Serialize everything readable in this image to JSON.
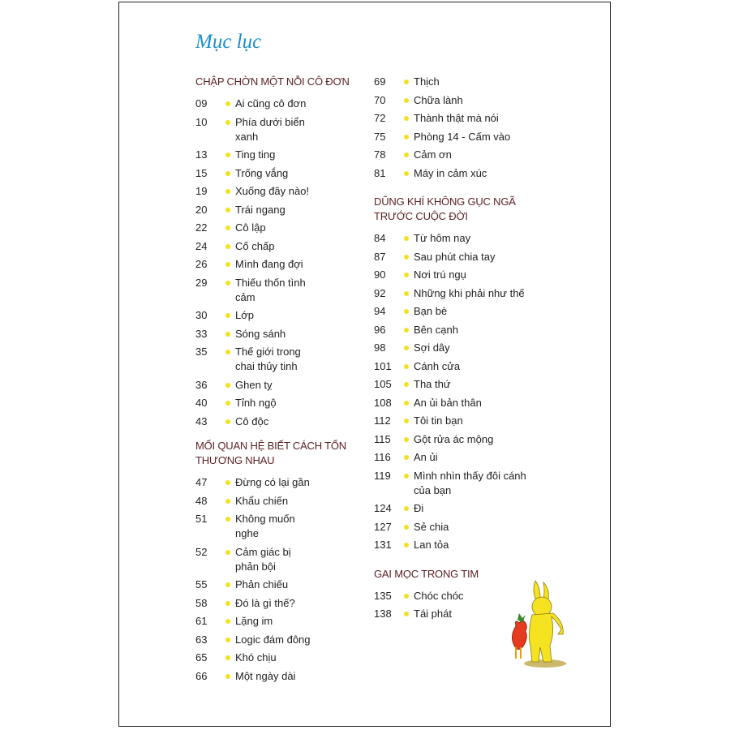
{
  "title": "Mục lục",
  "colors": {
    "title": "#1b8fc7",
    "heading": "#5a1f22",
    "bullet": "#f3e21b"
  },
  "sections": [
    {
      "heading": "CHẬP CHỜN MỘT NỖI CÔ ĐƠN",
      "entries": [
        {
          "page": "09",
          "title": "Ai cũng cô đơn"
        },
        {
          "page": "10",
          "title": "Phía dưới biển xanh"
        },
        {
          "page": "13",
          "title": "Ting ting"
        },
        {
          "page": "15",
          "title": "Trống vắng"
        },
        {
          "page": "19",
          "title": "Xuống đây nào!"
        },
        {
          "page": "20",
          "title": "Trái ngang"
        },
        {
          "page": "22",
          "title": "Cô lập"
        },
        {
          "page": "24",
          "title": "Cố chấp"
        },
        {
          "page": "26",
          "title": "Mình đang đợi"
        },
        {
          "page": "29",
          "title": "Thiếu thốn tình cảm"
        },
        {
          "page": "30",
          "title": "Lớp"
        },
        {
          "page": "33",
          "title": "Sóng sánh"
        },
        {
          "page": "35",
          "title": "Thế giới trong chai thủy tinh"
        },
        {
          "page": "36",
          "title": "Ghen tỵ"
        },
        {
          "page": "40",
          "title": "Tỉnh ngộ"
        },
        {
          "page": "43",
          "title": "Cô độc"
        }
      ]
    },
    {
      "heading": "MỐI QUAN HỆ BIẾT CÁCH TỔN THƯƠNG NHAU",
      "entries": [
        {
          "page": "47",
          "title": "Đừng có lại gần"
        },
        {
          "page": "48",
          "title": "Khẩu chiến"
        },
        {
          "page": "51",
          "title": "Không muốn nghe"
        },
        {
          "page": "52",
          "title": "Cảm giác bị phản bội"
        },
        {
          "page": "55",
          "title": "Phản chiếu"
        },
        {
          "page": "58",
          "title": "Đó là gì thế?"
        },
        {
          "page": "61",
          "title": "Lặng im"
        },
        {
          "page": "63",
          "title": "Logic đám đông"
        },
        {
          "page": "65",
          "title": "Khó chịu"
        },
        {
          "page": "66",
          "title": "Một ngày dài"
        },
        {
          "page": "69",
          "title": "Thịch"
        },
        {
          "page": "70",
          "title": "Chữa lành"
        },
        {
          "page": "72",
          "title": "Thành thật mà nói"
        },
        {
          "page": "75",
          "title": "Phòng 14 - Cấm vào"
        },
        {
          "page": "78",
          "title": "Cảm ơn"
        },
        {
          "page": "81",
          "title": "Máy in cảm xúc"
        }
      ]
    },
    {
      "heading": "DŨNG KHÍ KHÔNG GỤC NGÃ TRƯỚC CUỘC ĐỜI",
      "entries": [
        {
          "page": "84",
          "title": "Từ hôm nay"
        },
        {
          "page": "87",
          "title": "Sau phút chia tay"
        },
        {
          "page": "90",
          "title": "Nơi trú ngụ"
        },
        {
          "page": "92",
          "title": "Những khi phải như thế"
        },
        {
          "page": "94",
          "title": "Bạn bè"
        },
        {
          "page": "96",
          "title": "Bên cạnh"
        },
        {
          "page": "98",
          "title": "Sợi dây"
        },
        {
          "page": "101",
          "title": "Cánh cửa"
        },
        {
          "page": "105",
          "title": "Tha thứ"
        },
        {
          "page": "108",
          "title": "An ủi bản thân"
        },
        {
          "page": "112",
          "title": "Tôi tin bạn"
        },
        {
          "page": "115",
          "title": "Gột rửa ác mộng"
        },
        {
          "page": "116",
          "title": "An ủi"
        },
        {
          "page": "119",
          "title": "Mình nhìn thấy đôi cánh của bạn"
        },
        {
          "page": "124",
          "title": "Đi"
        },
        {
          "page": "127",
          "title": "Sẻ chia"
        },
        {
          "page": "131",
          "title": "Lan tỏa"
        }
      ]
    },
    {
      "heading": "GAI MỌC TRONG TIM",
      "entries": [
        {
          "page": "135",
          "title": "Chóc chóc"
        },
        {
          "page": "138",
          "title": "Tái phát"
        }
      ]
    }
  ],
  "illustration": "rabbit-with-carrot"
}
